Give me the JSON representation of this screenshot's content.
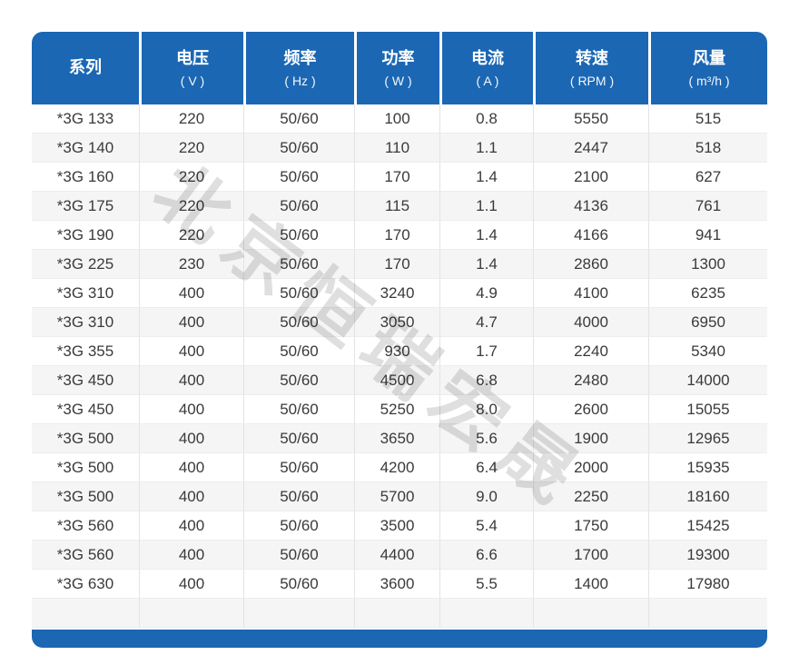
{
  "colors": {
    "header_blue": "#1b67b4",
    "header_text": "#ffffff",
    "row_stripe": "#f5f5f5",
    "row_white": "#ffffff",
    "text": "#3a3a3a"
  },
  "watermark": {
    "text": "北京恒瑞宏晟"
  },
  "table": {
    "columns": [
      {
        "label": "系列",
        "unit": ""
      },
      {
        "label": "电压",
        "unit": "( V )"
      },
      {
        "label": "频率",
        "unit": "( Hz )"
      },
      {
        "label": "功率",
        "unit": "( W )"
      },
      {
        "label": "电流",
        "unit": "( A )"
      },
      {
        "label": "转速",
        "unit": "( RPM )"
      },
      {
        "label": "风量",
        "unit": "( m³/h )"
      }
    ],
    "rows": [
      [
        "*3G 133",
        "220",
        "50/60",
        "100",
        "0.8",
        "5550",
        "515"
      ],
      [
        "*3G 140",
        "220",
        "50/60",
        "110",
        "1.1",
        "2447",
        "518"
      ],
      [
        "*3G 160",
        "220",
        "50/60",
        "170",
        "1.4",
        "2100",
        "627"
      ],
      [
        "*3G 175",
        "220",
        "50/60",
        "115",
        "1.1",
        "4136",
        "761"
      ],
      [
        "*3G 190",
        "220",
        "50/60",
        "170",
        "1.4",
        "4166",
        "941"
      ],
      [
        "*3G 225",
        "230",
        "50/60",
        "170",
        "1.4",
        "2860",
        "1300"
      ],
      [
        "*3G 310",
        "400",
        "50/60",
        "3240",
        "4.9",
        "4100",
        "6235"
      ],
      [
        "*3G 310",
        "400",
        "50/60",
        "3050",
        "4.7",
        "4000",
        "6950"
      ],
      [
        "*3G 355",
        "400",
        "50/60",
        "930",
        "1.7",
        "2240",
        "5340"
      ],
      [
        "*3G 450",
        "400",
        "50/60",
        "4500",
        "6.8",
        "2480",
        "14000"
      ],
      [
        "*3G 450",
        "400",
        "50/60",
        "5250",
        "8.0",
        "2600",
        "15055"
      ],
      [
        "*3G 500",
        "400",
        "50/60",
        "3650",
        "5.6",
        "1900",
        "12965"
      ],
      [
        "*3G 500",
        "400",
        "50/60",
        "4200",
        "6.4",
        "2000",
        "15935"
      ],
      [
        "*3G 500",
        "400",
        "50/60",
        "5700",
        "9.0",
        "2250",
        "18160"
      ],
      [
        "*3G 560",
        "400",
        "50/60",
        "3500",
        "5.4",
        "1750",
        "15425"
      ],
      [
        "*3G 560",
        "400",
        "50/60",
        "4400",
        "6.6",
        "1700",
        "19300"
      ],
      [
        "*3G 630",
        "400",
        "50/60",
        "3600",
        "5.5",
        "1400",
        "17980"
      ],
      [
        "",
        "",
        "",
        "",
        "",
        "",
        ""
      ]
    ]
  }
}
